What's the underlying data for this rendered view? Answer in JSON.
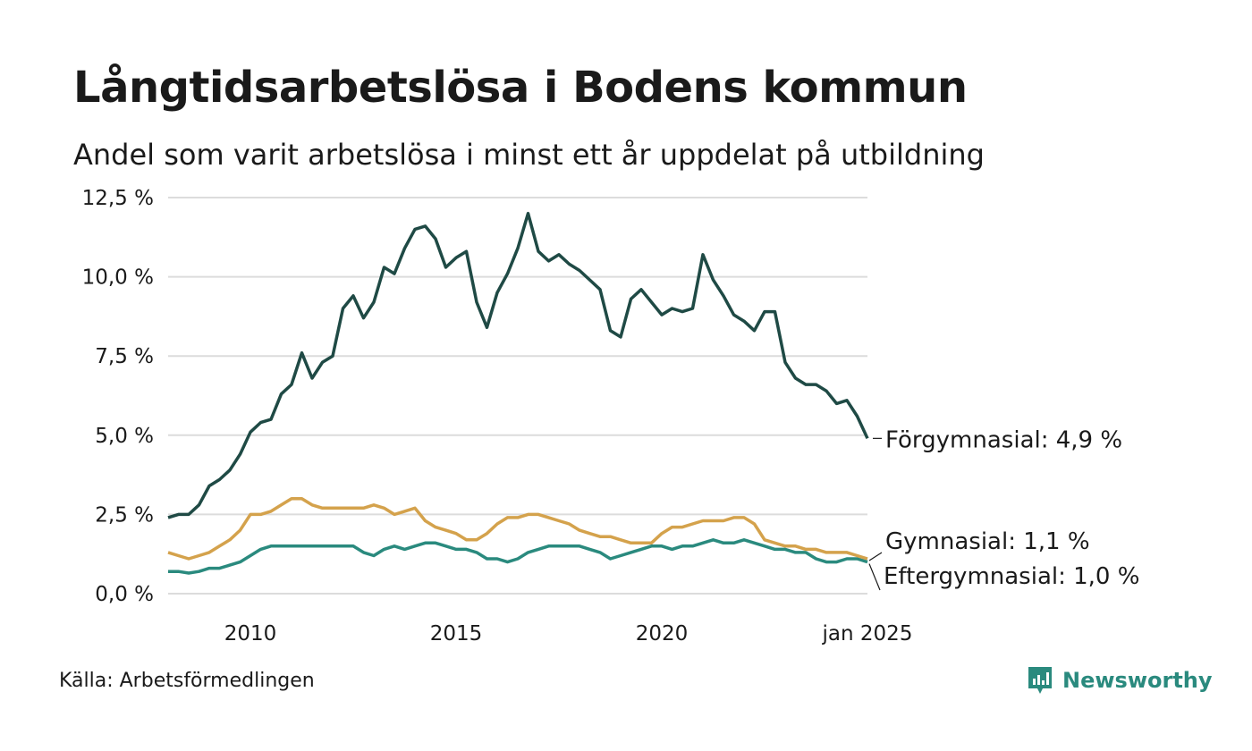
{
  "title": "Långtidsarbetslösa i Bodens kommun",
  "subtitle": "Andel som varit arbetslösa i minst ett år uppdelat på utbildning",
  "source": "Källa: Arbetsförmedlingen",
  "brand": {
    "name": "Newsworthy",
    "color": "#2a8a7e"
  },
  "chart_data": {
    "type": "line",
    "title": "Långtidsarbetslösa i Bodens kommun",
    "xlabel": "",
    "ylabel": "",
    "x_range": [
      2008.0,
      2025.0
    ],
    "ylim": [
      0,
      12.5
    ],
    "y_ticks": [
      0,
      2.5,
      5,
      7.5,
      10,
      12.5
    ],
    "y_tick_labels": [
      "0,0 %",
      "2,5 %",
      "5,0 %",
      "7,5 %",
      "10,0 %",
      "12,5 %"
    ],
    "x_ticks": [
      2010,
      2015,
      2020,
      2025.0
    ],
    "x_tick_labels": [
      "2010",
      "2015",
      "2020",
      "jan 2025"
    ],
    "grid": true,
    "series": [
      {
        "name": "Förgymnasial",
        "label": "Förgymnasial: 4,9 %",
        "color": "#1f4a45",
        "x": [
          2008.0,
          2008.25,
          2008.5,
          2008.75,
          2009.0,
          2009.25,
          2009.5,
          2009.75,
          2010.0,
          2010.25,
          2010.5,
          2010.75,
          2011.0,
          2011.25,
          2011.5,
          2011.75,
          2012.0,
          2012.25,
          2012.5,
          2012.75,
          2013.0,
          2013.25,
          2013.5,
          2013.75,
          2014.0,
          2014.25,
          2014.5,
          2014.75,
          2015.0,
          2015.25,
          2015.5,
          2015.75,
          2016.0,
          2016.25,
          2016.5,
          2016.75,
          2017.0,
          2017.25,
          2017.5,
          2017.75,
          2018.0,
          2018.25,
          2018.5,
          2018.75,
          2019.0,
          2019.25,
          2019.5,
          2019.75,
          2020.0,
          2020.25,
          2020.5,
          2020.75,
          2021.0,
          2021.25,
          2021.5,
          2021.75,
          2022.0,
          2022.25,
          2022.5,
          2022.75,
          2023.0,
          2023.25,
          2023.5,
          2023.75,
          2024.0,
          2024.25,
          2024.5,
          2024.75,
          2025.0
        ],
        "values": [
          2.4,
          2.5,
          2.5,
          2.8,
          3.4,
          3.6,
          3.9,
          4.4,
          5.1,
          5.4,
          5.5,
          6.3,
          6.6,
          7.6,
          6.8,
          7.3,
          7.5,
          9.0,
          9.4,
          8.7,
          9.2,
          10.3,
          10.1,
          10.9,
          11.5,
          11.6,
          11.2,
          10.3,
          10.6,
          10.8,
          9.2,
          8.4,
          9.5,
          10.1,
          10.9,
          12.0,
          10.8,
          10.5,
          10.7,
          10.4,
          10.2,
          9.9,
          9.6,
          8.3,
          8.1,
          9.3,
          9.6,
          9.2,
          8.8,
          9.0,
          8.9,
          9.0,
          10.7,
          9.9,
          9.4,
          8.8,
          8.6,
          8.3,
          8.9,
          8.9,
          7.3,
          6.8,
          6.6,
          6.6,
          6.4,
          6.0,
          6.1,
          5.6,
          4.9
        ],
        "end_value": 4.9
      },
      {
        "name": "Gymnasial",
        "label": "Gymnasial: 1,1 %",
        "color": "#d4a24c",
        "x": [
          2008.0,
          2008.25,
          2008.5,
          2008.75,
          2009.0,
          2009.25,
          2009.5,
          2009.75,
          2010.0,
          2010.25,
          2010.5,
          2010.75,
          2011.0,
          2011.25,
          2011.5,
          2011.75,
          2012.0,
          2012.25,
          2012.5,
          2012.75,
          2013.0,
          2013.25,
          2013.5,
          2013.75,
          2014.0,
          2014.25,
          2014.5,
          2014.75,
          2015.0,
          2015.25,
          2015.5,
          2015.75,
          2016.0,
          2016.25,
          2016.5,
          2016.75,
          2017.0,
          2017.25,
          2017.5,
          2017.75,
          2018.0,
          2018.25,
          2018.5,
          2018.75,
          2019.0,
          2019.25,
          2019.5,
          2019.75,
          2020.0,
          2020.25,
          2020.5,
          2020.75,
          2021.0,
          2021.25,
          2021.5,
          2021.75,
          2022.0,
          2022.25,
          2022.5,
          2022.75,
          2023.0,
          2023.25,
          2023.5,
          2023.75,
          2024.0,
          2024.25,
          2024.5,
          2024.75,
          2025.0
        ],
        "values": [
          1.3,
          1.2,
          1.1,
          1.2,
          1.3,
          1.5,
          1.7,
          2.0,
          2.5,
          2.5,
          2.6,
          2.8,
          3.0,
          3.0,
          2.8,
          2.7,
          2.7,
          2.7,
          2.7,
          2.7,
          2.8,
          2.7,
          2.5,
          2.6,
          2.7,
          2.3,
          2.1,
          2.0,
          1.9,
          1.7,
          1.7,
          1.9,
          2.2,
          2.4,
          2.4,
          2.5,
          2.5,
          2.4,
          2.3,
          2.2,
          2.0,
          1.9,
          1.8,
          1.8,
          1.7,
          1.6,
          1.6,
          1.6,
          1.9,
          2.1,
          2.1,
          2.2,
          2.3,
          2.3,
          2.3,
          2.4,
          2.4,
          2.2,
          1.7,
          1.6,
          1.5,
          1.5,
          1.4,
          1.4,
          1.3,
          1.3,
          1.3,
          1.2,
          1.1
        ],
        "end_value": 1.1
      },
      {
        "name": "Eftergymnasial",
        "label": "Eftergymnasial: 1,0 %",
        "color": "#2a8a7e",
        "x": [
          2008.0,
          2008.25,
          2008.5,
          2008.75,
          2009.0,
          2009.25,
          2009.5,
          2009.75,
          2010.0,
          2010.25,
          2010.5,
          2010.75,
          2011.0,
          2011.25,
          2011.5,
          2011.75,
          2012.0,
          2012.25,
          2012.5,
          2012.75,
          2013.0,
          2013.25,
          2013.5,
          2013.75,
          2014.0,
          2014.25,
          2014.5,
          2014.75,
          2015.0,
          2015.25,
          2015.5,
          2015.75,
          2016.0,
          2016.25,
          2016.5,
          2016.75,
          2017.0,
          2017.25,
          2017.5,
          2017.75,
          2018.0,
          2018.25,
          2018.5,
          2018.75,
          2019.0,
          2019.25,
          2019.5,
          2019.75,
          2020.0,
          2020.25,
          2020.5,
          2020.75,
          2021.0,
          2021.25,
          2021.5,
          2021.75,
          2022.0,
          2022.25,
          2022.5,
          2022.75,
          2023.0,
          2023.25,
          2023.5,
          2023.75,
          2024.0,
          2024.25,
          2024.5,
          2024.75,
          2025.0
        ],
        "values": [
          0.7,
          0.7,
          0.65,
          0.7,
          0.8,
          0.8,
          0.9,
          1.0,
          1.2,
          1.4,
          1.5,
          1.5,
          1.5,
          1.5,
          1.5,
          1.5,
          1.5,
          1.5,
          1.5,
          1.3,
          1.2,
          1.4,
          1.5,
          1.4,
          1.5,
          1.6,
          1.6,
          1.5,
          1.4,
          1.4,
          1.3,
          1.1,
          1.1,
          1.0,
          1.1,
          1.3,
          1.4,
          1.5,
          1.5,
          1.5,
          1.5,
          1.4,
          1.3,
          1.1,
          1.2,
          1.3,
          1.4,
          1.5,
          1.5,
          1.4,
          1.5,
          1.5,
          1.6,
          1.7,
          1.6,
          1.6,
          1.7,
          1.6,
          1.5,
          1.4,
          1.4,
          1.3,
          1.3,
          1.1,
          1.0,
          1.0,
          1.1,
          1.1,
          1.0
        ],
        "end_value": 1.0
      }
    ]
  }
}
